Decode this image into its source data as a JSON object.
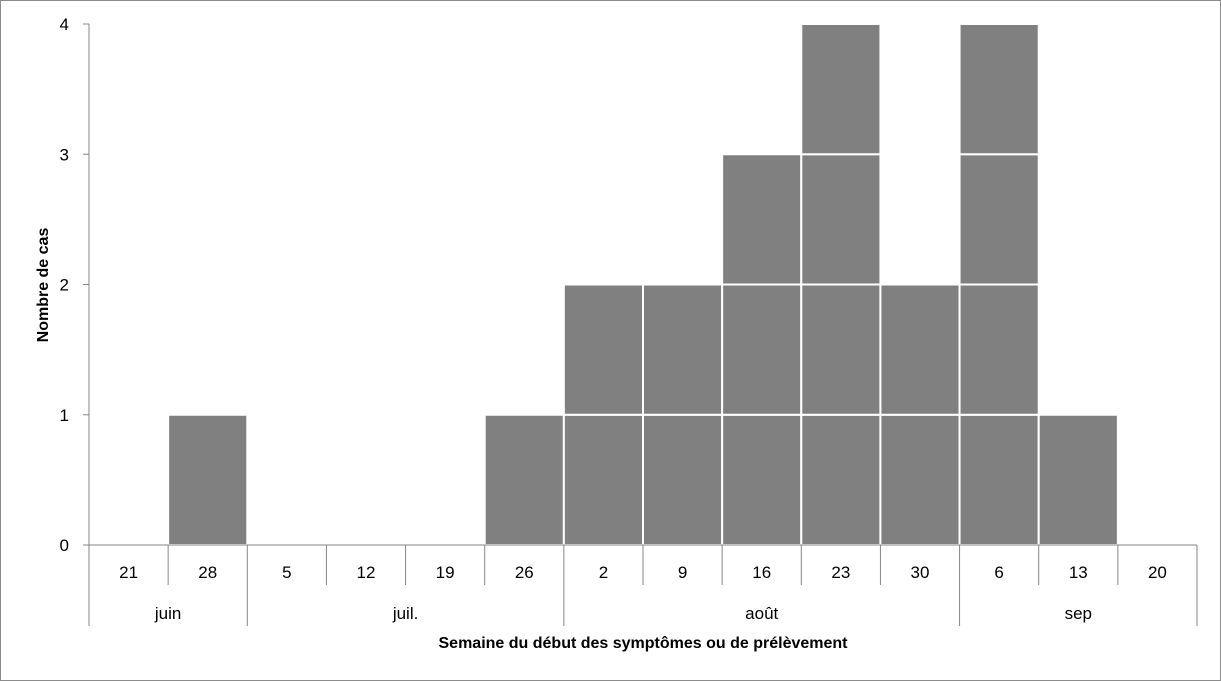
{
  "chart_data": {
    "type": "bar",
    "title": "",
    "xlabel": "Semaine du début des symptômes ou de prélèvement",
    "ylabel": "Nombre de cas",
    "ylim": [
      0,
      4
    ],
    "yticks": [
      0,
      1,
      2,
      3,
      4
    ],
    "categories": [
      "21",
      "28",
      "5",
      "12",
      "19",
      "26",
      "2",
      "9",
      "16",
      "23",
      "30",
      "6",
      "13",
      "20"
    ],
    "values": [
      0,
      1,
      0,
      0,
      0,
      1,
      2,
      2,
      3,
      4,
      2,
      4,
      1,
      0
    ],
    "month_groups": [
      {
        "label": "juin",
        "count": 2
      },
      {
        "label": "juil.",
        "count": 4
      },
      {
        "label": "août",
        "count": 5
      },
      {
        "label": "sep",
        "count": 3
      }
    ],
    "bar_color": "#808080",
    "grid": false,
    "legend": "none"
  }
}
